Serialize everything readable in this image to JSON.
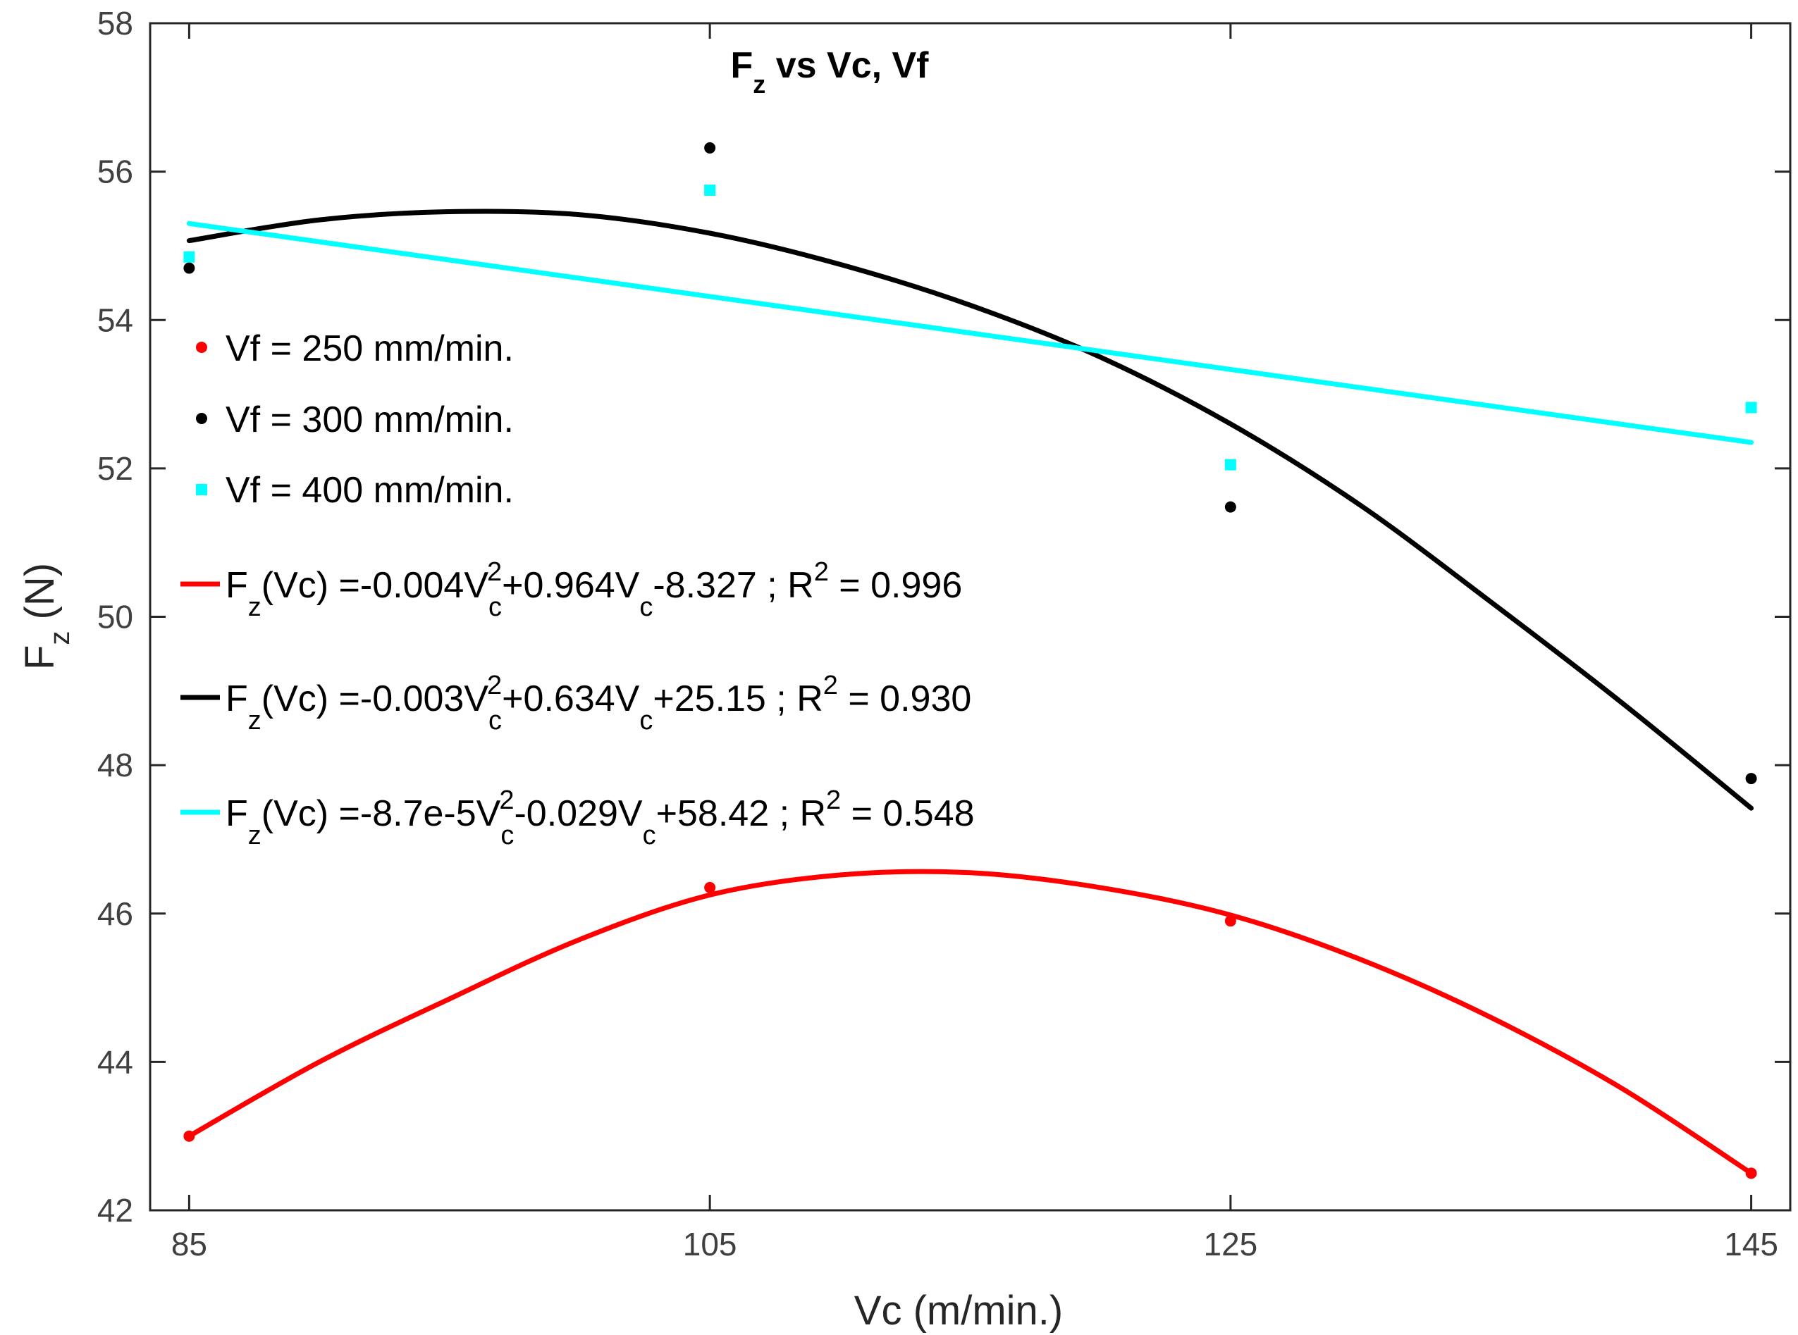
{
  "chart_data": {
    "type": "scatter",
    "title": {
      "main": "F",
      "sub": "z",
      "rest": " vs Vc, Vf"
    },
    "xlabel": "Vc (m/min.)",
    "ylabel": {
      "main": "F",
      "sub": "z",
      "rest": " (N)"
    },
    "xlim": [
      83.5,
      146.5
    ],
    "ylim": [
      42,
      58
    ],
    "xticks": [
      85,
      105,
      125,
      145
    ],
    "yticks": [
      42,
      44,
      46,
      48,
      50,
      52,
      54,
      56,
      58
    ],
    "grid": false,
    "legend_position": "left",
    "x": [
      85,
      105,
      125,
      145
    ],
    "series": [
      {
        "name": "Vf = 250 mm/min.",
        "marker": "circle",
        "color": "#ff0000",
        "values": [
          43.0,
          46.35,
          45.9,
          42.5
        ]
      },
      {
        "name": "Vf = 300 mm/min.",
        "marker": "circle",
        "color": "#000000",
        "values": [
          54.7,
          56.32,
          51.48,
          47.82
        ]
      },
      {
        "name": "Vf = 400 mm/min.",
        "marker": "square",
        "color": "#00ffff",
        "values": [
          54.85,
          55.75,
          52.05,
          52.82
        ]
      }
    ],
    "fits": [
      {
        "color": "#ff0000",
        "label_parts": [
          "F",
          "z",
          "(Vc) =-0.004V",
          "c",
          "2",
          "+0.964V",
          "c",
          "-8.327 ; R",
          "2",
          " = 0.996"
        ],
        "curve": {
          "x": [
            85,
            90,
            95,
            100,
            105,
            110,
            115,
            120,
            125,
            130,
            135,
            140,
            145
          ],
          "y": [
            43.0,
            44.0,
            44.85,
            45.65,
            46.25,
            46.52,
            46.55,
            46.35,
            45.98,
            45.38,
            44.6,
            43.65,
            42.5
          ]
        }
      },
      {
        "color": "#000000",
        "label_parts": [
          "F",
          "z",
          "(Vc) =-0.003V",
          "c",
          "2",
          "+0.634V",
          "c",
          "+25.15 ; R",
          "2",
          " = 0.930"
        ],
        "curve": {
          "x": [
            85,
            90,
            95,
            100,
            105,
            110,
            115,
            120,
            125,
            130,
            135,
            140,
            145
          ],
          "y": [
            55.07,
            55.35,
            55.46,
            55.42,
            55.17,
            54.75,
            54.2,
            53.5,
            52.6,
            51.5,
            50.2,
            48.85,
            47.42
          ]
        }
      },
      {
        "color": "#00ffff",
        "label_parts": [
          "F",
          "z",
          "(Vc) =-8.7e-5V",
          "c",
          "2",
          "-0.029V",
          "c",
          "+58.42 ; R",
          "2",
          " = 0.548"
        ],
        "curve": {
          "x": [
            85,
            145
          ],
          "y": [
            55.3,
            52.35
          ]
        }
      }
    ]
  }
}
